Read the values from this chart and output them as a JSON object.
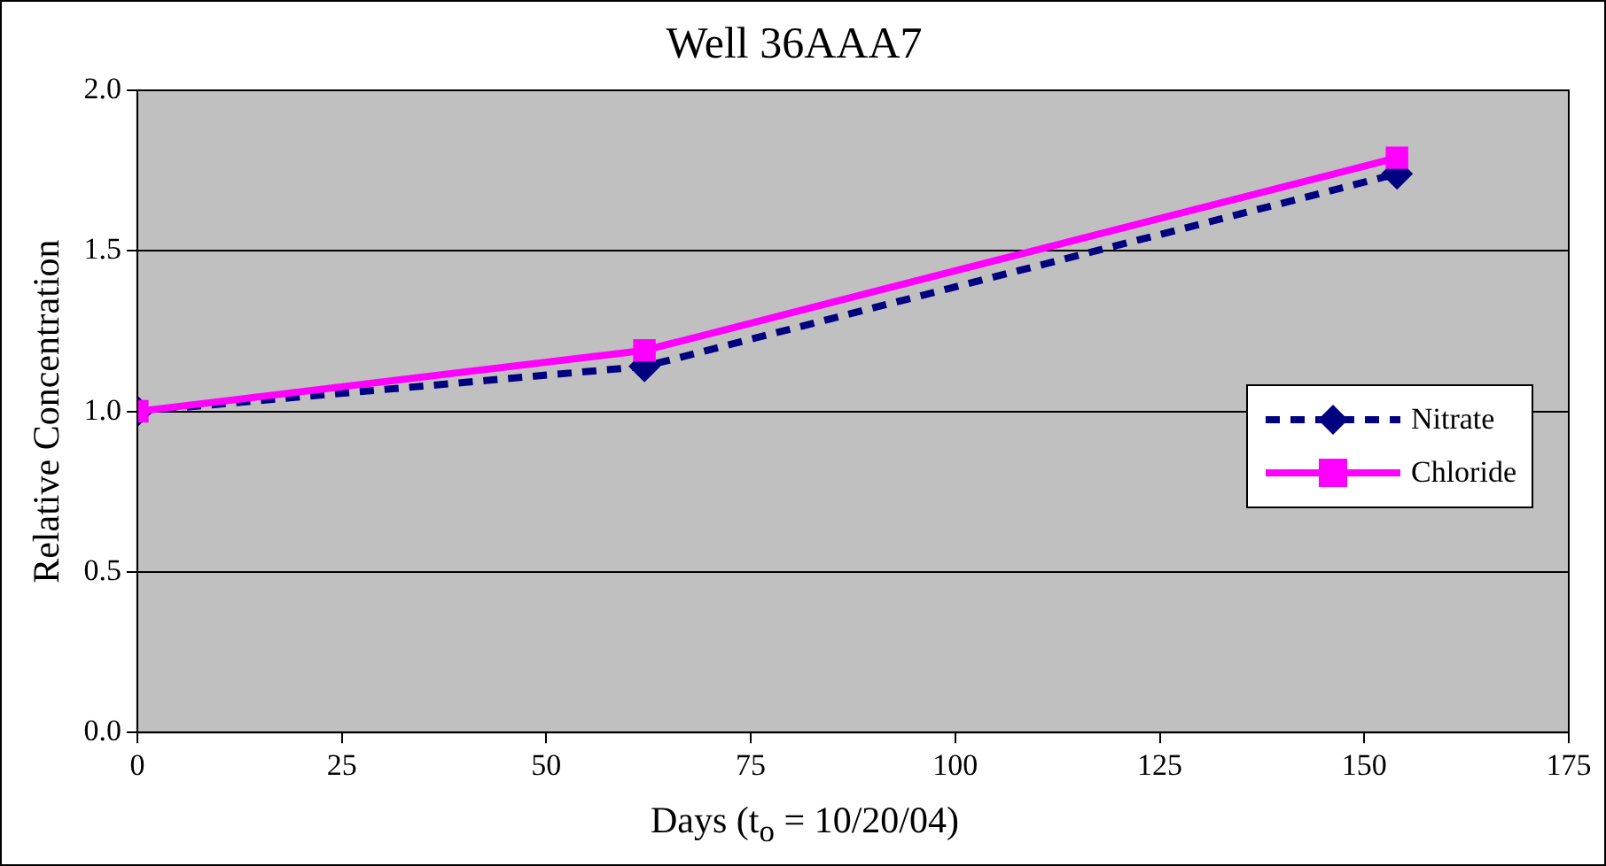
{
  "chart_data": {
    "type": "line",
    "title": "Well 36AAA7",
    "xlabel": "Days (t$_{o}$ = 10/20/04)",
    "ylabel": "Relative Concentration",
    "x": [
      0,
      62,
      154
    ],
    "series": [
      {
        "name": "Nitrate",
        "color": "#000080",
        "values": [
          1.0,
          1.14,
          1.74
        ],
        "marker": "diamond",
        "line_style": "dashed"
      },
      {
        "name": "Chloride",
        "color": "#ff00ff",
        "values": [
          1.0,
          1.19,
          1.79
        ],
        "marker": "square",
        "line_style": "solid"
      }
    ],
    "xlim": [
      0,
      175
    ],
    "xticks": [
      0,
      25,
      50,
      75,
      100,
      125,
      150,
      175
    ],
    "ylim": [
      0,
      2
    ],
    "yticks": [
      {
        "value": 0,
        "label": "0.0"
      },
      {
        "value": 0.5,
        "label": "0.5"
      },
      {
        "value": 1,
        "label": "1.0"
      },
      {
        "value": 1.5,
        "label": "1.5"
      },
      {
        "value": 2,
        "label": "2.0"
      }
    ],
    "grid": "y",
    "legend": "right"
  }
}
